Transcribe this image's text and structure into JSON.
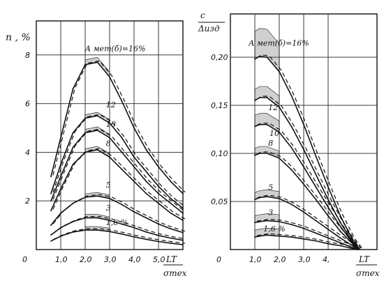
{
  "chart_data": [
    {
      "type": "line",
      "ylabel": "n , %",
      "xlabel_num": "LT",
      "xlabel_den": "σтех",
      "x_ticks": [
        "1,0",
        "2,0",
        "3,0",
        "4,0",
        "5,0"
      ],
      "y_ticks": [
        "2",
        "4",
        "6",
        "8"
      ],
      "origin_label": "0",
      "xlim": [
        0,
        6.0
      ],
      "ylim": [
        0,
        9.4
      ],
      "series": [
        {
          "name": "A мет(б)=16%",
          "x": [
            0.6,
            1.0,
            1.5,
            2.0,
            2.5,
            3.0,
            3.5,
            4.0,
            4.5,
            5.0,
            5.5,
            6.0
          ],
          "y": [
            3.0,
            4.6,
            6.6,
            7.6,
            7.7,
            7.1,
            6.1,
            5.0,
            4.1,
            3.4,
            2.8,
            2.3
          ]
        },
        {
          "name": "12",
          "x": [
            0.6,
            1.0,
            1.5,
            2.0,
            2.5,
            3.0,
            3.5,
            4.0,
            4.5,
            5.0,
            5.5,
            6.0
          ],
          "y": [
            2.3,
            3.5,
            4.8,
            5.4,
            5.5,
            5.2,
            4.6,
            3.8,
            3.2,
            2.6,
            2.1,
            1.7
          ]
        },
        {
          "name": "10",
          "x": [
            0.6,
            1.0,
            1.5,
            2.0,
            2.5,
            3.0,
            3.5,
            4.0,
            4.5,
            5.0,
            5.5,
            6.0
          ],
          "y": [
            2.0,
            3.0,
            4.2,
            4.8,
            4.9,
            4.6,
            4.0,
            3.4,
            2.8,
            2.3,
            1.9,
            1.5
          ]
        },
        {
          "name": "8",
          "x": [
            0.6,
            1.0,
            1.5,
            2.0,
            2.5,
            3.0,
            3.5,
            4.0,
            4.5,
            5.0,
            5.5,
            6.0
          ],
          "y": [
            1.6,
            2.5,
            3.5,
            4.0,
            4.1,
            3.8,
            3.3,
            2.8,
            2.3,
            1.9,
            1.5,
            1.2
          ]
        },
        {
          "name": "5",
          "x": [
            0.6,
            1.0,
            1.5,
            2.0,
            2.5,
            3.0,
            3.5,
            4.0,
            4.5,
            5.0,
            5.5,
            6.0
          ],
          "y": [
            1.0,
            1.5,
            1.9,
            2.15,
            2.2,
            2.1,
            1.85,
            1.55,
            1.3,
            1.05,
            0.85,
            0.7
          ]
        },
        {
          "name": "3",
          "x": [
            0.6,
            1.0,
            1.5,
            2.0,
            2.5,
            3.0,
            3.5,
            4.0,
            4.5,
            5.0,
            5.5,
            6.0
          ],
          "y": [
            0.6,
            0.9,
            1.15,
            1.3,
            1.3,
            1.2,
            1.05,
            0.9,
            0.72,
            0.58,
            0.47,
            0.38
          ]
        },
        {
          "name": "1,6 %",
          "x": [
            0.6,
            1.0,
            1.5,
            2.0,
            2.5,
            3.0,
            3.5,
            4.0,
            4.5,
            5.0,
            5.5,
            6.0
          ],
          "y": [
            0.35,
            0.55,
            0.72,
            0.8,
            0.8,
            0.74,
            0.64,
            0.52,
            0.42,
            0.33,
            0.26,
            0.2
          ]
        }
      ]
    },
    {
      "type": "line",
      "ylabel_num": "c",
      "ylabel_den": "Δизд",
      "xlabel_num": "LT",
      "xlabel_den": "σтех",
      "x_ticks": [
        "1,0",
        "2,0",
        "3,0",
        "4,"
      ],
      "y_ticks": [
        "0,05",
        "0,10",
        "0,15",
        "0,20"
      ],
      "origin_label": "0",
      "xlim": [
        0,
        6.0
      ],
      "ylim": [
        0,
        0.245
      ],
      "series": [
        {
          "name": "A мет(б)=16%",
          "x": [
            1.0,
            1.2,
            1.5,
            2.0,
            2.5,
            3.0,
            3.5,
            4.0,
            4.5,
            5.0,
            5.3
          ],
          "y": [
            0.198,
            0.201,
            0.2,
            0.185,
            0.16,
            0.13,
            0.097,
            0.065,
            0.035,
            0.01,
            0.0
          ]
        },
        {
          "name": "12",
          "x": [
            1.0,
            1.2,
            1.5,
            2.0,
            2.5,
            3.0,
            3.5,
            4.0,
            4.5,
            5.0,
            5.25
          ],
          "y": [
            0.155,
            0.158,
            0.158,
            0.148,
            0.128,
            0.104,
            0.078,
            0.052,
            0.028,
            0.008,
            0.0
          ]
        },
        {
          "name": "10",
          "x": [
            1.0,
            1.2,
            1.5,
            2.0,
            2.5,
            3.0,
            3.5,
            4.0,
            4.5,
            5.0,
            5.2
          ],
          "y": [
            0.128,
            0.13,
            0.13,
            0.122,
            0.106,
            0.086,
            0.065,
            0.044,
            0.024,
            0.007,
            0.0
          ]
        },
        {
          "name": "8",
          "x": [
            1.0,
            1.2,
            1.5,
            2.0,
            2.5,
            3.0,
            3.5,
            4.0,
            4.5,
            5.0,
            5.2
          ],
          "y": [
            0.098,
            0.1,
            0.1,
            0.095,
            0.083,
            0.068,
            0.052,
            0.035,
            0.019,
            0.006,
            0.0
          ]
        },
        {
          "name": "5",
          "x": [
            1.0,
            1.2,
            1.5,
            2.0,
            2.5,
            3.0,
            3.5,
            4.0,
            4.5,
            5.0,
            5.2
          ],
          "y": [
            0.052,
            0.054,
            0.055,
            0.053,
            0.047,
            0.039,
            0.03,
            0.021,
            0.012,
            0.004,
            0.0
          ]
        },
        {
          "name": "3",
          "x": [
            1.0,
            1.2,
            1.5,
            2.0,
            2.5,
            3.0,
            3.5,
            4.0,
            4.5,
            5.0,
            5.2
          ],
          "y": [
            0.028,
            0.029,
            0.03,
            0.029,
            0.026,
            0.022,
            0.017,
            0.012,
            0.007,
            0.002,
            0.0
          ]
        },
        {
          "name": "1,6 %",
          "x": [
            1.0,
            1.2,
            1.5,
            2.0,
            2.5,
            3.0,
            3.5,
            4.0,
            4.5,
            5.0,
            5.2
          ],
          "y": [
            0.013,
            0.014,
            0.015,
            0.014,
            0.013,
            0.011,
            0.009,
            0.006,
            0.004,
            0.001,
            0.0
          ]
        }
      ]
    }
  ]
}
